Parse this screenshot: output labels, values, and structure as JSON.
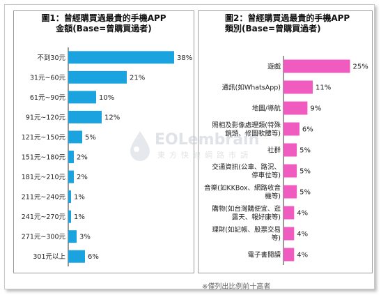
{
  "chart_data": [
    {
      "type": "bar",
      "orientation": "horizontal",
      "title": "圖1：曾經購買過最貴的手機APP",
      "subtitle": "金額(Base=曾購買過者)",
      "categories": [
        "不到30元",
        "31元~60元",
        "61元~90元",
        "91元~120元",
        "121元~150元",
        "151元~180元",
        "181元~210元",
        "211元~240元",
        "241元~270元",
        "271元~300元",
        "301元以上"
      ],
      "values": [
        38,
        21,
        10,
        12,
        5,
        2,
        2,
        1,
        1,
        3,
        6
      ],
      "value_labels": [
        "38%",
        "21%",
        "10%",
        "12%",
        "5%",
        "2%",
        "2%",
        "1%",
        "1%",
        "3%",
        "6%"
      ],
      "xlim": [
        0,
        40
      ],
      "color": "#1aa3df",
      "grid": false
    },
    {
      "type": "bar",
      "orientation": "horizontal",
      "title": "圖2：曾經購買過最貴的手機APP",
      "subtitle": "類別(Base=曾購買過者)",
      "categories": [
        "遊戲",
        "通訊(如WhatsApp)",
        "地圖/導航",
        "照相及影像處理類(特殊鏡頭、修圖軟體等)",
        "社群",
        "交通資訊(公車、路況、停車位等)",
        "音樂(如KKBox、網路收音機等)",
        "購物(如台灣購便宜、逛露天、報好康等)",
        "理財(如記帳、股票交易等)",
        "電子書閱讀"
      ],
      "category_lines": [
        [
          "遊戲"
        ],
        [
          "通訊(如WhatsApp)"
        ],
        [
          "地圖/導航"
        ],
        [
          "照相及影像處理類(特殊",
          "鏡頭、修圖軟體等)"
        ],
        [
          "社群"
        ],
        [
          "交通資訊(公車、路況、",
          "停車位等)"
        ],
        [
          "音樂(如KKBox、網路收音",
          "機等)"
        ],
        [
          "購物(如台灣購便宜、逛",
          "露天、報好康等)"
        ],
        [
          "理財(如記帳、股票交易",
          "等)"
        ],
        [
          "電子書閱讀"
        ]
      ],
      "values": [
        25,
        11,
        9,
        6,
        5,
        5,
        5,
        4,
        4,
        4
      ],
      "value_labels": [
        "25%",
        "11%",
        "9%",
        "6%",
        "5%",
        "5%",
        "5%",
        "4%",
        "4%",
        "4%"
      ],
      "xlim": [
        0,
        28
      ],
      "color": "#f05bc0",
      "grid": false
    }
  ],
  "footnote": "※僅列出比例前十高者",
  "watermark": {
    "logo": "EOLembrain",
    "subtitle": "東方快線網路市調"
  }
}
